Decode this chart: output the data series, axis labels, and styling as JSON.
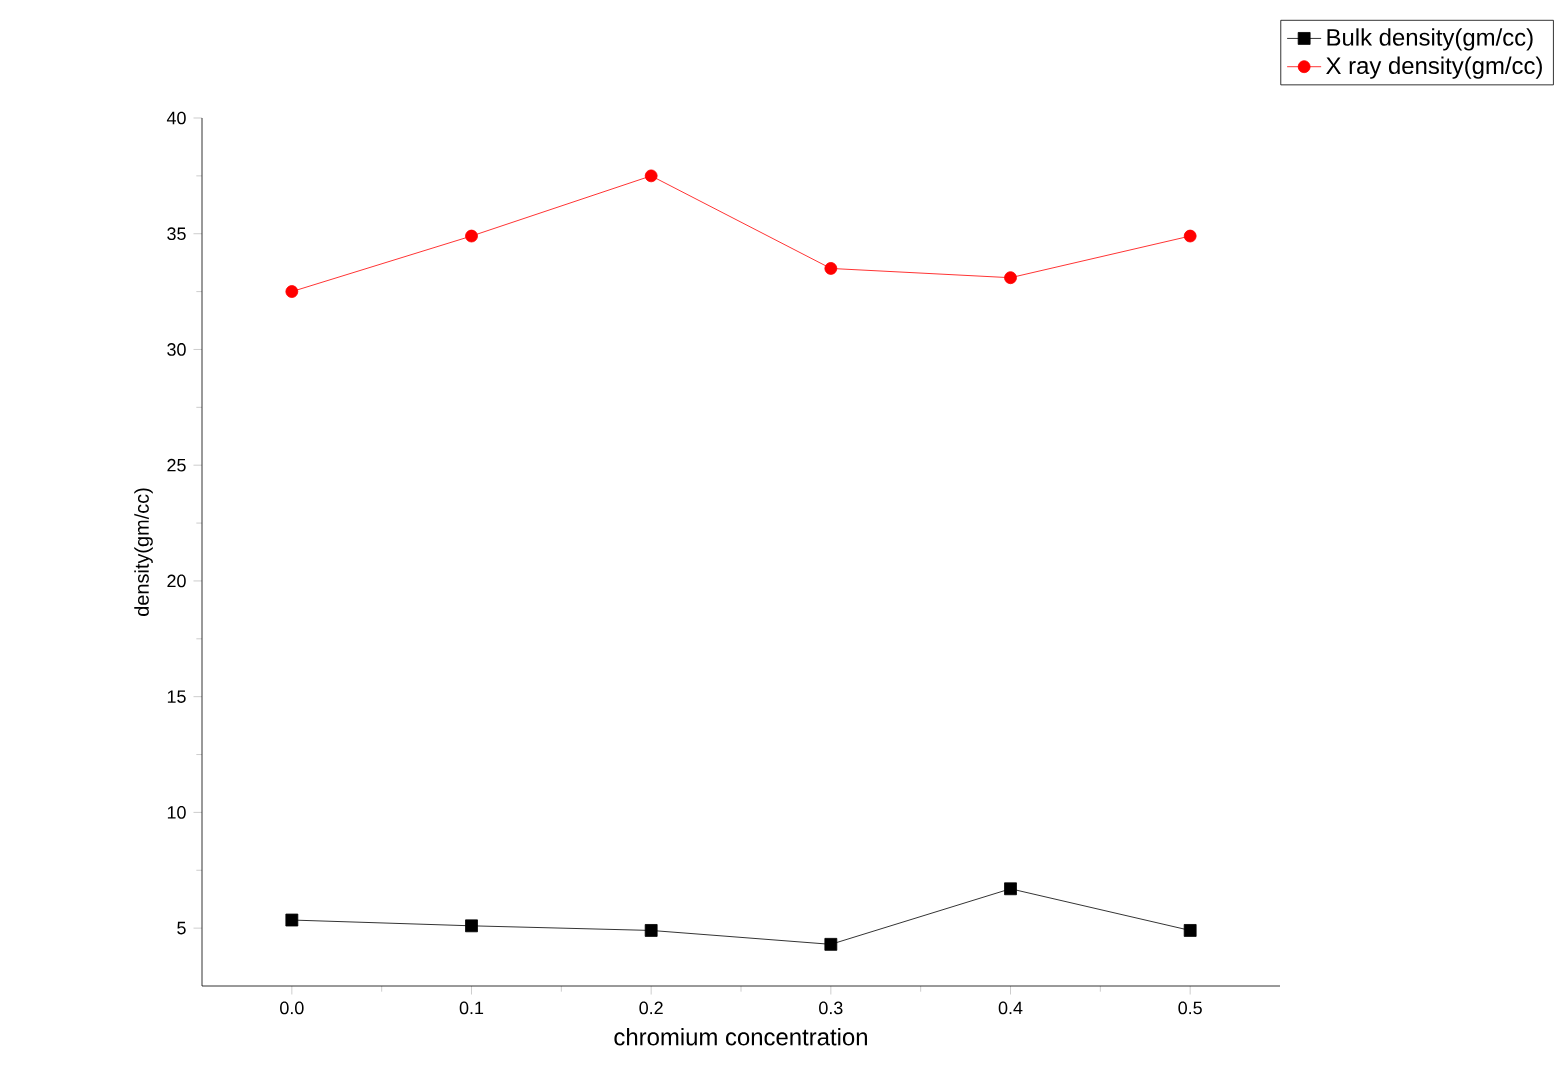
{
  "chart_data": {
    "type": "line",
    "xlabel": "chromium concentration",
    "ylabel": "density(gm/cc)",
    "x": [
      0.0,
      0.1,
      0.2,
      0.3,
      0.4,
      0.5
    ],
    "series": [
      {
        "name": "Bulk density(gm/cc)",
        "color": "#000000",
        "marker": "square",
        "values": [
          5.35,
          5.1,
          4.9,
          4.3,
          6.7,
          4.9
        ]
      },
      {
        "name": "X ray density(gm/cc)",
        "color": "#ff0000",
        "marker": "circle",
        "values": [
          32.5,
          34.9,
          37.5,
          33.5,
          33.1,
          34.9
        ]
      }
    ],
    "xlim": [
      -0.05,
      0.55
    ],
    "ylim": [
      2.5,
      40
    ],
    "xticks": [
      {
        "value": 0.0,
        "label": "0.0"
      },
      {
        "value": 0.1,
        "label": "0.1"
      },
      {
        "value": 0.2,
        "label": "0.2"
      },
      {
        "value": 0.3,
        "label": "0.3"
      },
      {
        "value": 0.4,
        "label": "0.4"
      },
      {
        "value": 0.5,
        "label": "0.5"
      }
    ],
    "yticks": [
      5,
      10,
      15,
      20,
      25,
      30,
      35,
      40
    ],
    "grid": false,
    "legend": "top right",
    "line_style": "solid"
  }
}
